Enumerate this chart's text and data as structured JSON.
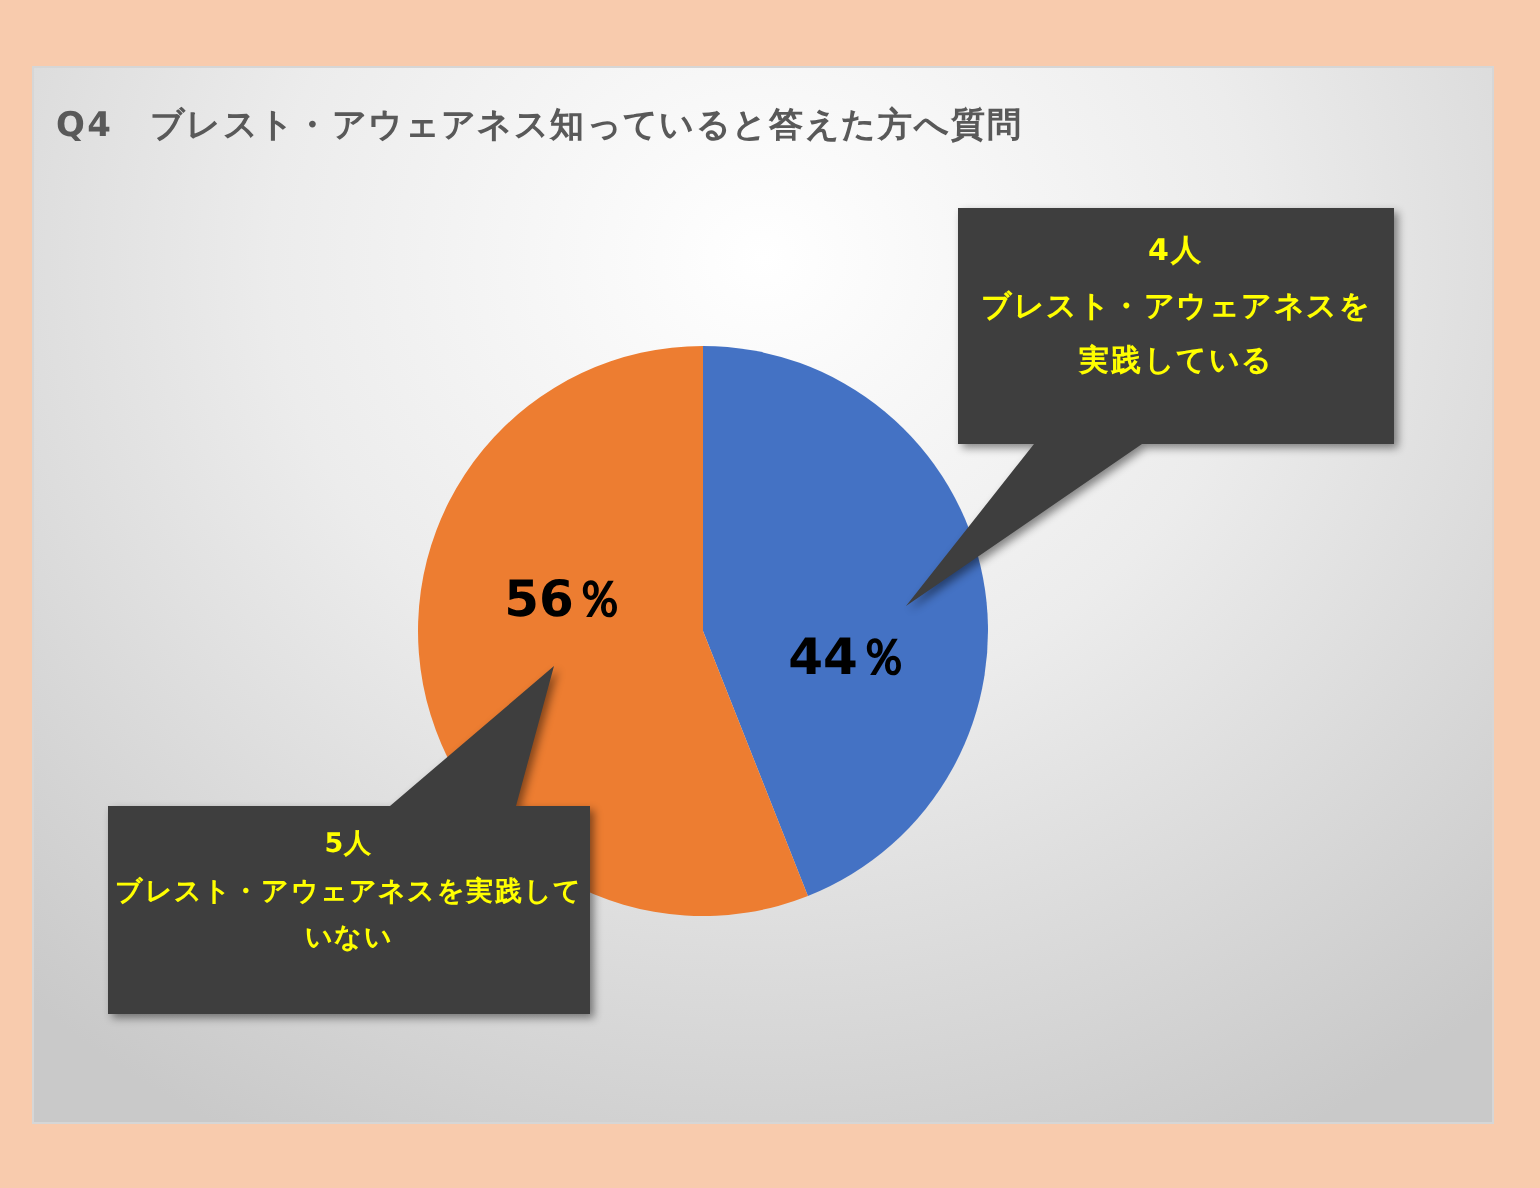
{
  "chart_data": {
    "type": "pie",
    "title": "Q4　ブレスト・アウェアネス知っていると答えた方へ質問",
    "categories": [
      "ブレスト・アウェアネスを実践している",
      "ブレスト・アウェアネスを実践していない"
    ],
    "values": [
      44,
      56
    ],
    "value_labels": [
      "44％",
      "56％"
    ],
    "colors": [
      "#4472c4",
      "#ed7d31"
    ],
    "annotations": [
      "4人",
      "5人"
    ]
  }
}
